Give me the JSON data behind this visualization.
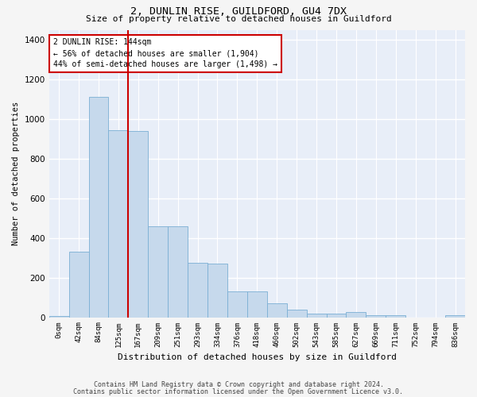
{
  "title1": "2, DUNLIN RISE, GUILDFORD, GU4 7DX",
  "title2": "Size of property relative to detached houses in Guildford",
  "xlabel": "Distribution of detached houses by size in Guildford",
  "ylabel": "Number of detached properties",
  "bar_labels": [
    "0sqm",
    "42sqm",
    "84sqm",
    "125sqm",
    "167sqm",
    "209sqm",
    "251sqm",
    "293sqm",
    "334sqm",
    "376sqm",
    "418sqm",
    "460sqm",
    "502sqm",
    "543sqm",
    "585sqm",
    "627sqm",
    "669sqm",
    "711sqm",
    "752sqm",
    "794sqm",
    "836sqm"
  ],
  "bar_values": [
    8,
    330,
    1110,
    945,
    940,
    460,
    460,
    275,
    270,
    130,
    130,
    70,
    40,
    20,
    20,
    25,
    12,
    12,
    0,
    0,
    10
  ],
  "bar_color": "#c6d9ec",
  "bar_edge_color": "#7bafd4",
  "vline_x": 3.5,
  "vline_color": "#cc0000",
  "annotation_text": "2 DUNLIN RISE: 144sqm\n← 56% of detached houses are smaller (1,904)\n44% of semi-detached houses are larger (1,498) →",
  "annotation_box_color": "#ffffff",
  "annotation_box_edge": "#cc0000",
  "ylim": [
    0,
    1450
  ],
  "yticks": [
    0,
    200,
    400,
    600,
    800,
    1000,
    1200,
    1400
  ],
  "background_color": "#e8eef8",
  "grid_color": "#ffffff",
  "footer1": "Contains HM Land Registry data © Crown copyright and database right 2024.",
  "footer2": "Contains public sector information licensed under the Open Government Licence v3.0."
}
